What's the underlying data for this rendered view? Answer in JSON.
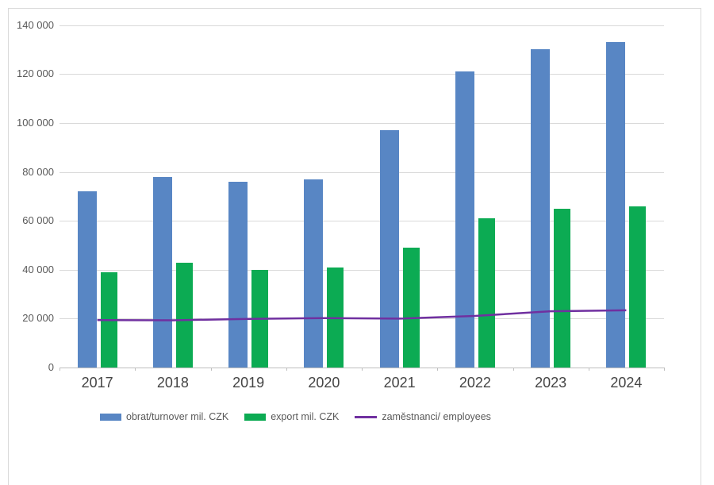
{
  "window": {
    "background": "#ffffff",
    "canvas_border_color": "#d9d9d9"
  },
  "colors": {
    "gridline": "#d9d9d9",
    "axis": "#bfbfbf",
    "y_tick_text": "#595959",
    "x_tick_text": "#444444",
    "legend_text": "#595959",
    "turnover_blue": "#5886C4",
    "export_green": "#0CAB53",
    "employees_purple": "#7030A0"
  },
  "chart_data": {
    "type": "bar",
    "subtype": "grouped bars with overlay line",
    "title": "",
    "xlabel": "",
    "ylabel": "",
    "categories": [
      "2017",
      "2018",
      "2019",
      "2020",
      "2021",
      "2022",
      "2023",
      "2024"
    ],
    "series": [
      {
        "name": "obrat/turnover mil. CZK",
        "kind": "bar",
        "color": "#5886C4",
        "values": [
          72000,
          78000,
          76000,
          77000,
          97000,
          121000,
          130000,
          133000
        ]
      },
      {
        "name": "export mil. CZK",
        "kind": "bar",
        "color": "#0CAB53",
        "values": [
          39000,
          43000,
          40000,
          41000,
          49000,
          61000,
          65000,
          66000
        ]
      },
      {
        "name": "zaměstnanci/ employees",
        "kind": "line",
        "color": "#7030A0",
        "values": [
          19400,
          19300,
          19900,
          20200,
          20000,
          21100,
          23000,
          23400
        ]
      }
    ],
    "ylim": [
      0,
      140000
    ],
    "y_ticks": [
      0,
      20000,
      40000,
      60000,
      80000,
      100000,
      120000,
      140000
    ],
    "y_tick_labels": [
      "0",
      "20 000",
      "40 000",
      "60 000",
      "80 000",
      "100 000",
      "120 000",
      "140 000"
    ],
    "grid": true,
    "legend_position": "bottom"
  }
}
